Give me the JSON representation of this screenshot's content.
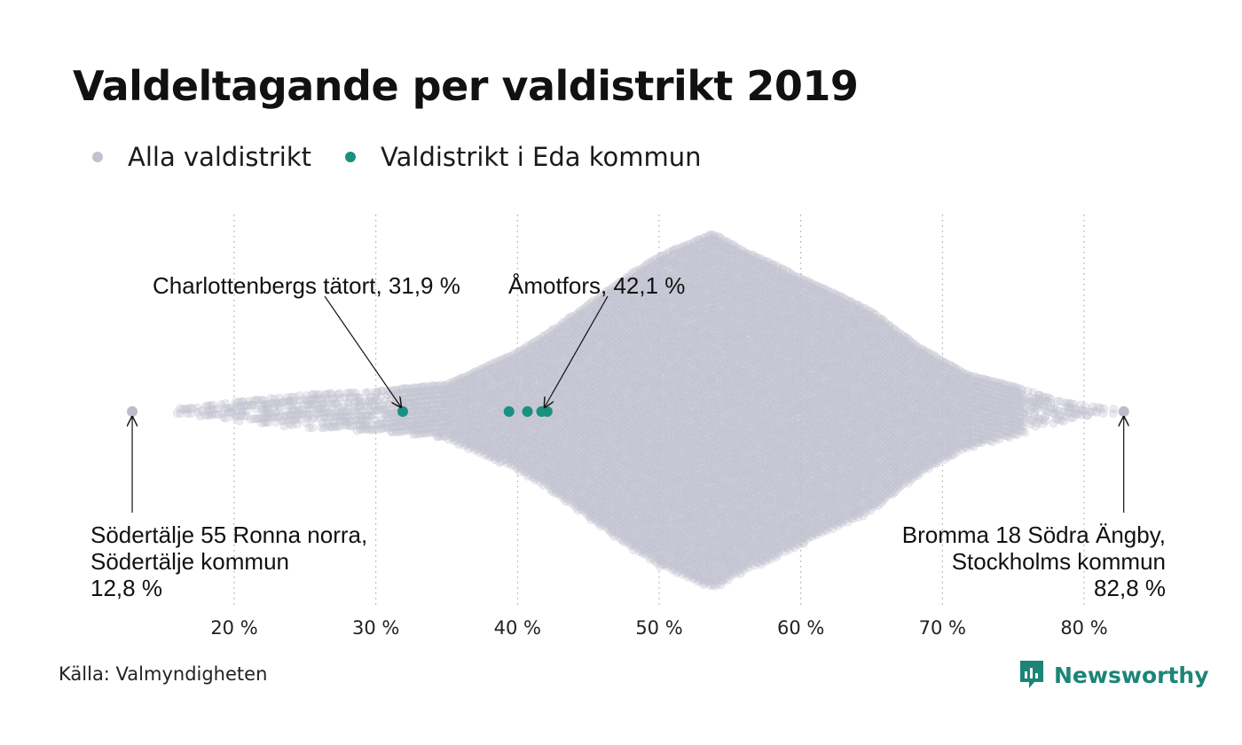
{
  "title": "Valdeltagande per valdistrikt 2019",
  "legend": [
    {
      "label": "Alla valdistrikt",
      "color": "#c2c2cf"
    },
    {
      "label": "Valdistrikt i Eda kommun",
      "color": "#1a9080"
    }
  ],
  "source": "Källa: Valmyndigheten",
  "brand": {
    "name": "Newsworthy",
    "icon": "newsworthy-logo-icon",
    "color": "#1c8577"
  },
  "chart_data": {
    "type": "scatter",
    "subtype": "beeswarm",
    "title": "Valdeltagande per valdistrikt 2019",
    "x_ticks": [
      20,
      30,
      40,
      50,
      60,
      70,
      80
    ],
    "x_tick_labels": [
      "20 %",
      "30 %",
      "40 %",
      "50 %",
      "60 %",
      "70 %",
      "80 %"
    ],
    "xlim": [
      12.8,
      82.8
    ],
    "grid": "vertical dotted at ticks",
    "series": [
      {
        "name": "Alla valdistrikt",
        "color": "#c2c2cf",
        "distribution": {
          "min": 12.8,
          "max": 82.8,
          "mode": 53.8,
          "relative_density": [
            [
              16,
              0.01
            ],
            [
              20,
              0.05
            ],
            [
              25,
              0.09
            ],
            [
              30,
              0.11
            ],
            [
              35,
              0.15
            ],
            [
              38,
              0.26
            ],
            [
              40,
              0.33
            ],
            [
              42,
              0.43
            ],
            [
              45,
              0.6
            ],
            [
              48,
              0.77
            ],
            [
              50,
              0.87
            ],
            [
              52,
              0.94
            ],
            [
              53.8,
              1.0
            ],
            [
              56,
              0.9
            ],
            [
              58,
              0.83
            ],
            [
              60,
              0.75
            ],
            [
              63,
              0.64
            ],
            [
              65,
              0.56
            ],
            [
              68,
              0.38
            ],
            [
              70,
              0.28
            ],
            [
              72,
              0.2
            ],
            [
              75,
              0.14
            ],
            [
              78,
              0.06
            ],
            [
              80,
              0.03
            ],
            [
              82,
              0.01
            ]
          ]
        },
        "highlighted": [
          {
            "label": "Södertälje 55 Ronna norra,",
            "sublabel": "Södertälje kommun",
            "value_label": "12,8 %",
            "x": 12.8
          },
          {
            "label": "Bromma 18 Södra Ängby,",
            "sublabel": "Stockholms kommun",
            "value_label": "82,8 %",
            "x": 82.8
          }
        ]
      },
      {
        "name": "Valdistrikt i Eda kommun",
        "color": "#1a9080",
        "points": [
          31.9,
          39.4,
          40.7,
          41.7,
          42.1
        ],
        "annotated": [
          {
            "label": "Charlottenbergs tätort, 31,9 %",
            "x": 31.9
          },
          {
            "label": "Åmotfors, 42,1 %",
            "x": 42.1
          }
        ]
      }
    ]
  }
}
